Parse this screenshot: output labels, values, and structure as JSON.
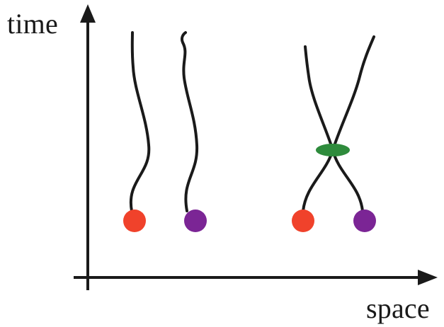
{
  "axes": {
    "y_label": "time",
    "x_label": "space"
  },
  "colors": {
    "ink": "#1a1a1a",
    "particle_red": "#f0422b",
    "particle_purple": "#7b2595",
    "interaction_green": "#2e8b3c"
  }
}
